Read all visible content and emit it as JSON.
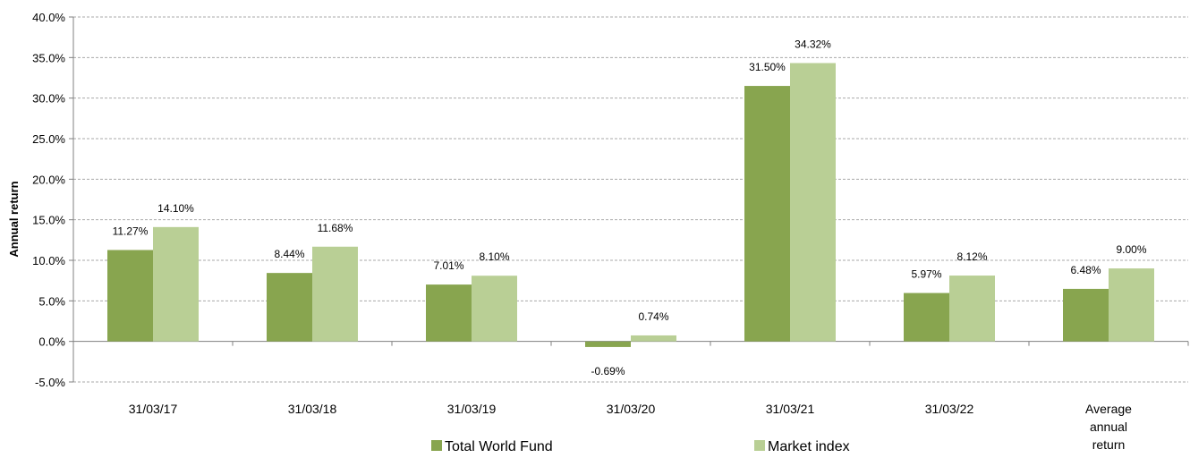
{
  "chart_data": {
    "type": "bar",
    "ylabel": "Annual return",
    "xlabel": "",
    "title": "",
    "ylim": [
      -5,
      40
    ],
    "ytick_step": 5,
    "ytick_labels": [
      "-5.0%",
      "0.0%",
      "5.0%",
      "10.0%",
      "15.0%",
      "20.0%",
      "25.0%",
      "30.0%",
      "35.0%",
      "40.0%"
    ],
    "categories": [
      [
        "31/03/17"
      ],
      [
        "31/03/18"
      ],
      [
        "31/03/19"
      ],
      [
        "31/03/20"
      ],
      [
        "31/03/21"
      ],
      [
        "31/03/22"
      ],
      [
        "Average",
        "annual",
        "return"
      ]
    ],
    "series": [
      {
        "name": "Total World Fund",
        "color": "#88a54f",
        "values": [
          11.27,
          8.44,
          7.01,
          -0.69,
          31.5,
          5.97,
          6.48
        ],
        "labels": [
          "11.27%",
          "8.44%",
          "7.01%",
          "-0.69%",
          "31.50%",
          "5.97%",
          "6.48%"
        ]
      },
      {
        "name": "Market index",
        "color": "#b9cf95",
        "values": [
          14.1,
          11.68,
          8.1,
          0.74,
          34.32,
          8.12,
          9.0
        ],
        "labels": [
          "14.10%",
          "11.68%",
          "8.10%",
          "0.74%",
          "34.32%",
          "8.12%",
          "9.00%"
        ]
      }
    ],
    "grid": true,
    "grid_color": "#aaaaaa",
    "legend_position": "bottom"
  }
}
